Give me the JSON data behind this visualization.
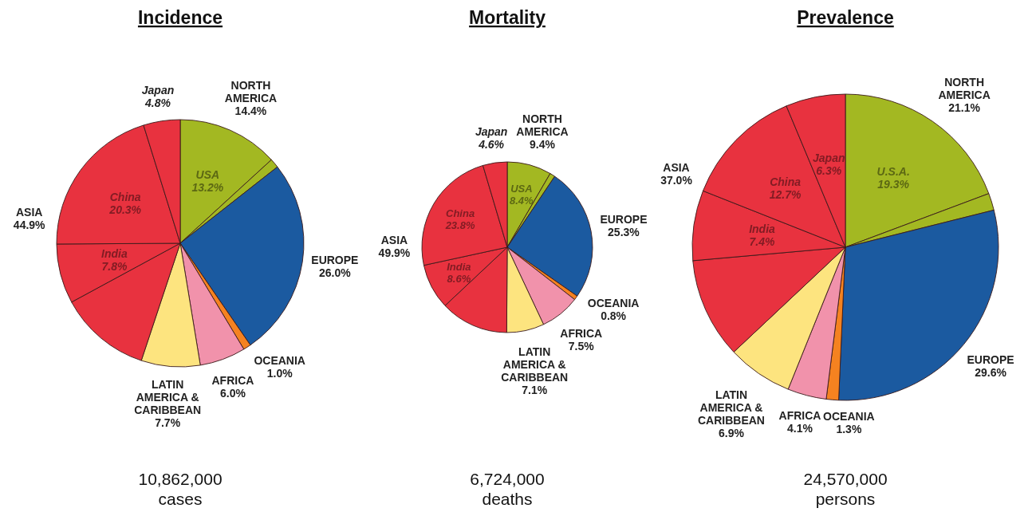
{
  "chart_data": [
    {
      "type": "pie",
      "title": "Incidence",
      "categories": [
        "USA",
        null,
        "EUROPE",
        "OCEANIA",
        "AFRICA",
        "LATIN AMERICA & CARIBBEAN",
        null,
        "India",
        "China",
        "Japan"
      ],
      "values": [
        13.2,
        1.2,
        26.0,
        1.0,
        6.0,
        7.7,
        12.0,
        7.8,
        20.3,
        4.8
      ],
      "value_labels": [
        "13.2%",
        null,
        "26.0%",
        "1.0%",
        "6.0%",
        "7.7%",
        null,
        "7.8%",
        "20.3%",
        "4.8%"
      ],
      "colors": [
        "#a3b822",
        "#a3b822",
        "#1b5aa0",
        "#f58220",
        "#f192ab",
        "#fde47f",
        "#e8323f",
        "#e8323f",
        "#e8323f",
        "#e8323f"
      ],
      "annotations": [
        "NORTH AMERICA 14.4%",
        "ASIA 44.9%",
        "10,862,000 cases"
      ]
    },
    {
      "type": "pie",
      "title": "Mortality",
      "categories": [
        "USA",
        null,
        "EUROPE",
        "OCEANIA",
        "AFRICA",
        "LATIN AMERICA & CARIBBEAN",
        null,
        "India",
        "China",
        "Japan"
      ],
      "values": [
        8.4,
        1.0,
        25.3,
        0.8,
        7.5,
        7.1,
        12.9,
        8.6,
        23.8,
        4.6
      ],
      "value_labels": [
        "8.4%",
        null,
        "25.3%",
        "0.8%",
        "7.5%",
        "7.1%",
        null,
        "8.6%",
        "23.8%",
        "4.6%"
      ],
      "colors": [
        "#a3b822",
        "#a3b822",
        "#1b5aa0",
        "#f58220",
        "#f192ab",
        "#fde47f",
        "#e8323f",
        "#e8323f",
        "#e8323f",
        "#e8323f"
      ],
      "annotations": [
        "NORTH AMERICA 9.4%",
        "ASIA 49.9%",
        "6,724,000 deaths"
      ]
    },
    {
      "type": "pie",
      "title": "Prevalence",
      "categories": [
        "U.S.A.",
        null,
        "EUROPE",
        "OCEANIA",
        "AFRICA",
        "LATIN AMERICA & CARIBBEAN",
        null,
        "India",
        "China",
        "Japan"
      ],
      "values": [
        19.3,
        1.8,
        29.6,
        1.3,
        4.1,
        6.9,
        10.6,
        7.4,
        12.7,
        6.3
      ],
      "value_labels": [
        "19.3%",
        null,
        "29.6%",
        "1.3%",
        "4.1%",
        "6.9%",
        null,
        "7.4%",
        "12.7%",
        "6.3%"
      ],
      "colors": [
        "#a3b822",
        "#a3b822",
        "#1b5aa0",
        "#f58220",
        "#f192ab",
        "#fde47f",
        "#e8323f",
        "#e8323f",
        "#e8323f",
        "#e8323f"
      ],
      "annotations": [
        "NORTH AMERICA 21.1%",
        "ASIA 37.0%",
        "24,570,000 persons"
      ]
    }
  ]
}
